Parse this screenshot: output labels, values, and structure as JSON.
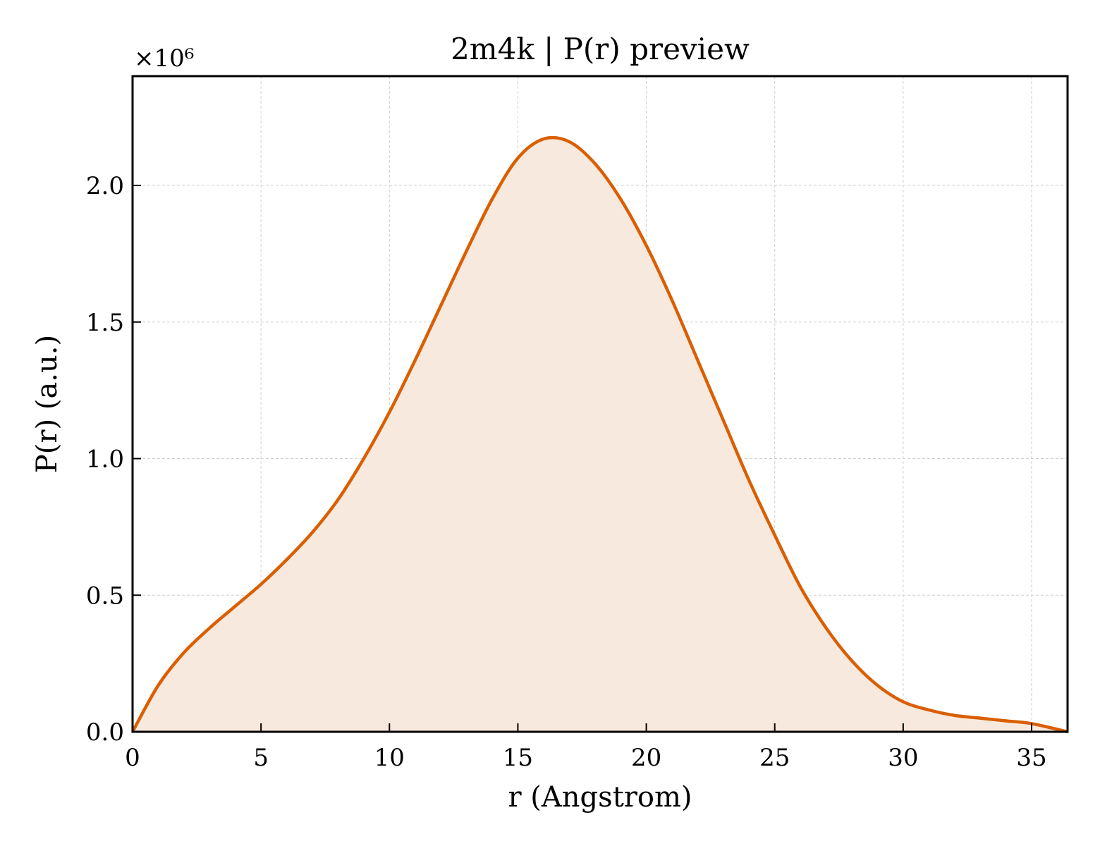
{
  "chart_data": {
    "type": "area",
    "title": "2m4k | P(r) preview",
    "xlabel": "r (Angstrom)",
    "ylabel": "P(r) (a.u.)",
    "offset_text": "×10⁶",
    "xlim": [
      0,
      36.4
    ],
    "ylim": [
      0,
      2.4
    ],
    "y_scale_factor": 1000000,
    "x_ticks": [
      0,
      5,
      10,
      15,
      20,
      25,
      30,
      35
    ],
    "x_tick_labels": [
      "0",
      "5",
      "10",
      "15",
      "20",
      "25",
      "30",
      "35"
    ],
    "y_ticks": [
      0,
      0.5,
      1.0,
      1.5,
      2.0
    ],
    "y_tick_labels": [
      "0.0",
      "0.5",
      "1.0",
      "1.5",
      "2.0"
    ],
    "grid": true,
    "colors": {
      "line": "#d95f02",
      "fill": "#f8e9de"
    },
    "series": [
      {
        "x": [
          0,
          1,
          2,
          3,
          4,
          5,
          6,
          7,
          8,
          9,
          10,
          11,
          12,
          13,
          14,
          15,
          16,
          17,
          18,
          19,
          20,
          21,
          22,
          23,
          24,
          25,
          26,
          27,
          28,
          29,
          30,
          31,
          32,
          33,
          34,
          35,
          36.4
        ],
        "y": [
          0.0,
          0.17,
          0.29,
          0.38,
          0.46,
          0.54,
          0.63,
          0.73,
          0.85,
          1.0,
          1.17,
          1.36,
          1.56,
          1.76,
          1.95,
          2.1,
          2.17,
          2.16,
          2.08,
          1.95,
          1.78,
          1.58,
          1.36,
          1.14,
          0.92,
          0.72,
          0.53,
          0.38,
          0.26,
          0.17,
          0.11,
          0.08,
          0.06,
          0.05,
          0.04,
          0.03,
          0.0
        ]
      }
    ]
  }
}
